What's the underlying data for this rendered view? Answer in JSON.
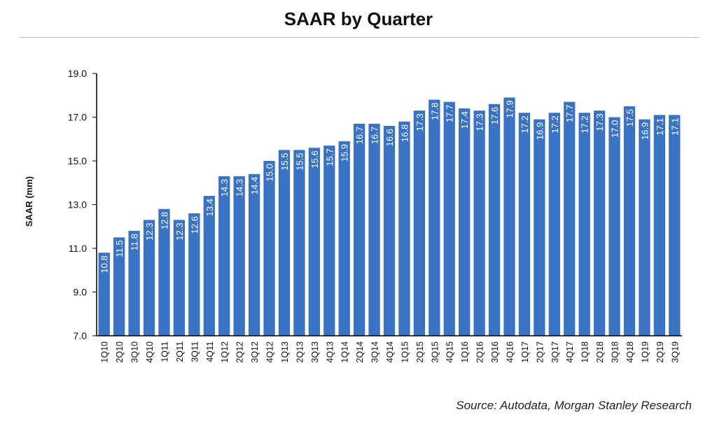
{
  "chart_data": {
    "type": "bar",
    "title": "SAAR by Quarter",
    "xlabel": "",
    "ylabel": "SAAR (mm)",
    "ylim": [
      7.0,
      19.0
    ],
    "yticks": [
      "7.0",
      "9.0",
      "11.0",
      "13.0",
      "15.0",
      "17.0",
      "19.0"
    ],
    "grid": false,
    "legend": "none",
    "bar_color": "#3a72c4",
    "label_color": "#ffffff",
    "categories": [
      "1Q10",
      "2Q10",
      "3Q10",
      "4Q10",
      "1Q11",
      "2Q11",
      "3Q11",
      "4Q11",
      "1Q12",
      "2Q12",
      "3Q12",
      "4Q12",
      "1Q13",
      "2Q13",
      "3Q13",
      "4Q13",
      "1Q14",
      "2Q14",
      "3Q14",
      "4Q14",
      "1Q15",
      "2Q15",
      "3Q15",
      "4Q15",
      "1Q16",
      "2Q16",
      "3Q16",
      "4Q16",
      "1Q17",
      "2Q17",
      "3Q17",
      "4Q17",
      "1Q18",
      "2Q18",
      "3Q18",
      "4Q18",
      "1Q19",
      "2Q19",
      "3Q19"
    ],
    "values": [
      10.8,
      11.5,
      11.8,
      12.3,
      12.8,
      12.3,
      12.6,
      13.4,
      14.3,
      14.3,
      14.4,
      15.0,
      15.5,
      15.5,
      15.6,
      15.7,
      15.9,
      16.7,
      16.7,
      16.6,
      16.8,
      17.3,
      17.8,
      17.7,
      17.4,
      17.3,
      17.6,
      17.9,
      17.2,
      16.9,
      17.2,
      17.7,
      17.2,
      17.3,
      17.0,
      17.5,
      16.9,
      17.1,
      17.1
    ],
    "data_labels": [
      "10.8",
      "11.5",
      "11.8",
      "12.3",
      "12.8",
      "12.3",
      "12.6",
      "13.4",
      "14.3",
      "14.3",
      "14.4",
      "15.0",
      "15.5",
      "15.5",
      "15.6",
      "15.7",
      "15.9",
      "16.7",
      "16.7",
      "16.6",
      "16.8",
      "17.3",
      "17.8",
      "17.7",
      "17.4",
      "17.3",
      "17.6",
      "17.9",
      "17.2",
      "16.9",
      "17.2",
      "17.7",
      "17.2",
      "17.3",
      "17.0",
      "17.5",
      "16.9",
      "17.1",
      "17.1"
    ],
    "source": "Source: Autodata, Morgan Stanley Research"
  }
}
